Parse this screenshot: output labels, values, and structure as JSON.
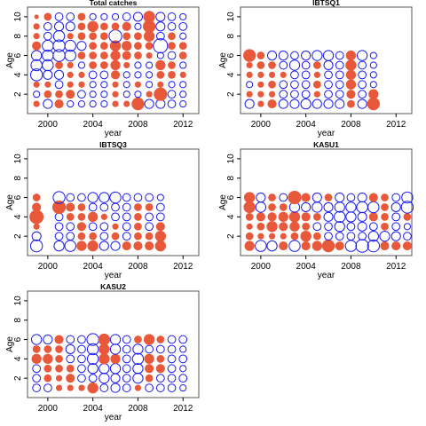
{
  "colors": {
    "positive": "#e8593c",
    "negative": "#1a1aee",
    "frame": "#555555"
  },
  "chart_data": [
    {
      "type": "scatter",
      "title": "Total catches",
      "xlabel": "year",
      "ylabel": "Age",
      "xlim": [
        1998.2,
        2013.4
      ],
      "ylim": [
        0,
        11
      ],
      "xticks": [
        2000,
        2004,
        2008,
        2012
      ],
      "yticks": [
        2,
        4,
        6,
        8,
        10
      ],
      "grid": false,
      "years": [
        1999,
        2000,
        2001,
        2002,
        2003,
        2004,
        2005,
        2006,
        2007,
        2008,
        2009,
        2010,
        2011,
        2012
      ],
      "ages": [
        1,
        2,
        3,
        4,
        5,
        6,
        7,
        8,
        9,
        10
      ],
      "residuals": [
        [
          0.2,
          -0.4,
          0.4,
          -0.2,
          -0.2,
          -0.2,
          -0.2,
          0.2,
          0.2,
          0.8,
          -0.4,
          -0.4,
          -0.3,
          -0.2
        ],
        [
          -0.2,
          0.3,
          0.3,
          0.4,
          -0.3,
          -0.2,
          -0.2,
          0.2,
          -0.2,
          -0.2,
          0.2,
          0.9,
          -0.3,
          -0.2
        ],
        [
          0.2,
          0.2,
          -0.3,
          0.2,
          0.2,
          -0.2,
          -0.2,
          0.2,
          -0.2,
          0.2,
          -0.2,
          0.2,
          -0.2,
          -0.2
        ],
        [
          -0.7,
          -0.4,
          -0.4,
          0.2,
          0.2,
          -0.3,
          -0.3,
          0.4,
          -0.2,
          -0.2,
          -0.2,
          0.3,
          0.3,
          0.2
        ],
        [
          -0.6,
          -0.6,
          0.3,
          0.2,
          -0.2,
          0.3,
          0.3,
          0.5,
          0.2,
          -0.2,
          -0.2,
          0.5,
          0.3,
          -0.2
        ],
        [
          -0.5,
          -0.6,
          -0.7,
          -0.6,
          0.3,
          0.3,
          0.3,
          0.5,
          0.4,
          0.3,
          0.2,
          -0.2,
          -0.3,
          0.3
        ],
        [
          0.4,
          -0.6,
          -0.7,
          -0.6,
          -0.4,
          0.3,
          0.3,
          0.6,
          0.5,
          0.3,
          0.3,
          -1.0,
          0.3,
          0.3
        ],
        [
          0.2,
          -0.3,
          -0.6,
          0.2,
          0.3,
          0.3,
          0.3,
          -0.8,
          0.3,
          0.3,
          0.6,
          -0.3,
          0.3,
          -0.2
        ],
        [
          0.2,
          -0.3,
          -0.4,
          -0.4,
          0.3,
          0.6,
          0.3,
          0.3,
          0.4,
          -0.2,
          0.8,
          -0.4,
          -0.3,
          -0.3
        ],
        [
          0.1,
          0.3,
          -0.3,
          -0.3,
          0.3,
          -0.2,
          -0.2,
          -0.2,
          -0.3,
          -0.4,
          0.7,
          -0.4,
          -0.3,
          -0.2
        ]
      ]
    },
    {
      "type": "scatter",
      "title": "IBTSQ1",
      "xlabel": "year",
      "ylabel": "Age",
      "xlim": [
        1998.2,
        2013.4
      ],
      "ylim": [
        0,
        11
      ],
      "xticks": [
        2000,
        2004,
        2008,
        2012
      ],
      "yticks": [
        2,
        4,
        6,
        8,
        10
      ],
      "grid": false,
      "years": [
        1999,
        2000,
        2001,
        2002,
        2003,
        2004,
        2005,
        2006,
        2007,
        2008,
        2009,
        2010
      ],
      "ages": [
        1,
        2,
        3,
        4,
        5,
        6
      ],
      "residuals": [
        [
          -0.4,
          0.2,
          0.4,
          -0.4,
          -0.4,
          -0.5,
          -0.4,
          -0.4,
          -0.4,
          0.3,
          -0.4,
          0.8
        ],
        [
          0.2,
          0.2,
          0.2,
          -0.3,
          -0.3,
          -0.3,
          0.2,
          -0.3,
          -0.3,
          0.4,
          -0.3,
          0.5
        ],
        [
          -0.2,
          0.2,
          0.3,
          -0.3,
          -0.3,
          -0.3,
          0.3,
          -0.3,
          -0.3,
          0.5,
          -0.3,
          -0.2
        ],
        [
          0.2,
          0.2,
          0.2,
          0.2,
          -0.3,
          -0.3,
          0.2,
          -0.3,
          -0.3,
          0.5,
          -0.3,
          -0.2
        ],
        [
          0.2,
          0.3,
          0.3,
          -0.3,
          -0.5,
          -0.3,
          0.3,
          -0.4,
          -0.3,
          0.6,
          -0.3,
          -0.2
        ],
        [
          0.8,
          0.3,
          -0.4,
          -0.4,
          -0.3,
          -0.4,
          -0.5,
          -0.5,
          -0.3,
          0.5,
          -0.5,
          -0.2
        ]
      ]
    },
    {
      "type": "scatter",
      "title": "IBTSQ3",
      "xlabel": "year",
      "ylabel": "Age",
      "xlim": [
        1998.2,
        2013.4
      ],
      "ylim": [
        0,
        11
      ],
      "xticks": [
        2000,
        2004,
        2008,
        2012
      ],
      "yticks": [
        2,
        4,
        6,
        8,
        10
      ],
      "grid": false,
      "years": [
        1999,
        2000,
        2001,
        2002,
        2003,
        2004,
        2005,
        2006,
        2007,
        2008,
        2009,
        2010
      ],
      "ages": [
        1,
        2,
        3,
        4,
        5,
        6
      ],
      "residuals": [
        [
          -0.7,
          0,
          -0.5,
          -0.6,
          0.5,
          0.6,
          -0.4,
          -0.4,
          0.4,
          0.4,
          0.4,
          0.6
        ],
        [
          -0.4,
          0,
          -0.3,
          -0.3,
          0.3,
          0.3,
          -0.3,
          0.3,
          -0.3,
          0.3,
          0.3,
          0.6
        ],
        [
          0.2,
          0,
          -0.3,
          -0.3,
          0.4,
          -0.3,
          -0.3,
          0.2,
          -0.3,
          0.3,
          -0.3,
          0.4
        ],
        [
          1.0,
          0,
          -0.3,
          0.3,
          0.3,
          0.5,
          0.2,
          -0.3,
          -0.3,
          0.3,
          -0.3,
          -0.3
        ],
        [
          0.4,
          0,
          0.9,
          0.4,
          0.3,
          -0.3,
          -0.3,
          -0.3,
          -0.3,
          0.3,
          0.3,
          -0.3
        ],
        [
          0.3,
          0,
          -0.7,
          -0.3,
          -0.3,
          -0.5,
          -0.5,
          -0.6,
          -0.3,
          -0.3,
          -0.3,
          -0.2
        ]
      ]
    },
    {
      "type": "scatter",
      "title": "KASU1",
      "xlabel": "year",
      "ylabel": "Age",
      "xlim": [
        1998.2,
        2013.4
      ],
      "ylim": [
        0,
        11
      ],
      "xticks": [
        2000,
        2004,
        2008,
        2012
      ],
      "yticks": [
        2,
        4,
        6,
        8,
        10
      ],
      "grid": false,
      "years": [
        1999,
        2000,
        2001,
        2002,
        2003,
        2004,
        2005,
        2006,
        2007,
        2008,
        2009,
        2010,
        2011,
        2012,
        2013
      ],
      "ages": [
        1,
        2,
        3,
        4,
        5,
        6
      ],
      "residuals": [
        [
          0.5,
          -0.6,
          -0.5,
          0.4,
          -0.6,
          0.4,
          0.5,
          0.8,
          0.4,
          -0.6,
          -0.8,
          -0.7,
          0.4,
          0.4,
          0.4
        ],
        [
          0.3,
          0.2,
          0.2,
          0.2,
          0.3,
          0.6,
          0.3,
          -0.3,
          -0.3,
          -0.3,
          -0.3,
          -0.5,
          -0.5,
          -0.4,
          -0.3
        ],
        [
          0.2,
          0.3,
          0.6,
          0.4,
          0.5,
          0.3,
          -0.3,
          -0.3,
          -0.5,
          -0.3,
          -0.4,
          -0.3,
          0.3,
          -0.3,
          -0.2
        ],
        [
          0.3,
          0.4,
          0.4,
          0.5,
          0.6,
          0.4,
          0.3,
          -0.4,
          -0.6,
          -0.5,
          -0.4,
          0.4,
          0.3,
          -0.3,
          0.3
        ],
        [
          0.7,
          -0.5,
          0.3,
          0.3,
          -0.5,
          -0.4,
          -0.5,
          -0.4,
          -0.5,
          -0.5,
          -0.6,
          -0.6,
          0.3,
          -0.4,
          -0.7
        ],
        [
          0.6,
          -0.4,
          0.3,
          -0.3,
          0.9,
          0.4,
          -0.4,
          0.3,
          -0.4,
          -0.3,
          -0.4,
          0.4,
          0.3,
          -0.3,
          -0.6
        ]
      ]
    },
    {
      "type": "scatter",
      "title": "KASU2",
      "xlabel": "year",
      "ylabel": "Age",
      "xlim": [
        1998.2,
        2013.4
      ],
      "ylim": [
        0,
        11
      ],
      "xticks": [
        2000,
        2004,
        2008,
        2012
      ],
      "yticks": [
        2,
        4,
        6,
        8,
        10
      ],
      "grid": false,
      "years": [
        1999,
        2000,
        2001,
        2002,
        2003,
        2004,
        2005,
        2006,
        2007,
        2008,
        2009,
        2010,
        2011,
        2012
      ],
      "ages": [
        1,
        2,
        3,
        4,
        5,
        6
      ],
      "residuals": [
        [
          -0.3,
          -0.3,
          0.2,
          0.2,
          0.2,
          0.6,
          -0.3,
          -0.4,
          -0.3,
          0.2,
          -0.3,
          -0.3,
          -0.3,
          -0.2
        ],
        [
          -0.3,
          0.3,
          0.2,
          0.4,
          -0.3,
          -0.3,
          -0.5,
          -0.4,
          -0.3,
          -0.5,
          0.3,
          -0.3,
          -0.3,
          -0.3
        ],
        [
          -0.3,
          0.3,
          0.3,
          0.3,
          -0.3,
          -0.5,
          -0.5,
          -0.5,
          -0.3,
          -0.5,
          0.4,
          0.4,
          -0.3,
          -0.2
        ],
        [
          0.5,
          0.5,
          0.3,
          -0.3,
          -0.3,
          -0.6,
          0.6,
          0.5,
          -0.3,
          -0.6,
          0.5,
          0.3,
          -0.3,
          -0.3
        ],
        [
          0.3,
          0.3,
          0.3,
          -0.4,
          -0.3,
          -0.6,
          0.6,
          -0.5,
          -0.3,
          -0.5,
          -0.3,
          -0.3,
          -0.3,
          -0.2
        ],
        [
          -0.5,
          -0.4,
          0.4,
          -0.3,
          -0.3,
          -0.7,
          0.7,
          -0.5,
          -0.3,
          0.3,
          0.6,
          0.3,
          -0.3,
          -0.3
        ]
      ]
    }
  ]
}
